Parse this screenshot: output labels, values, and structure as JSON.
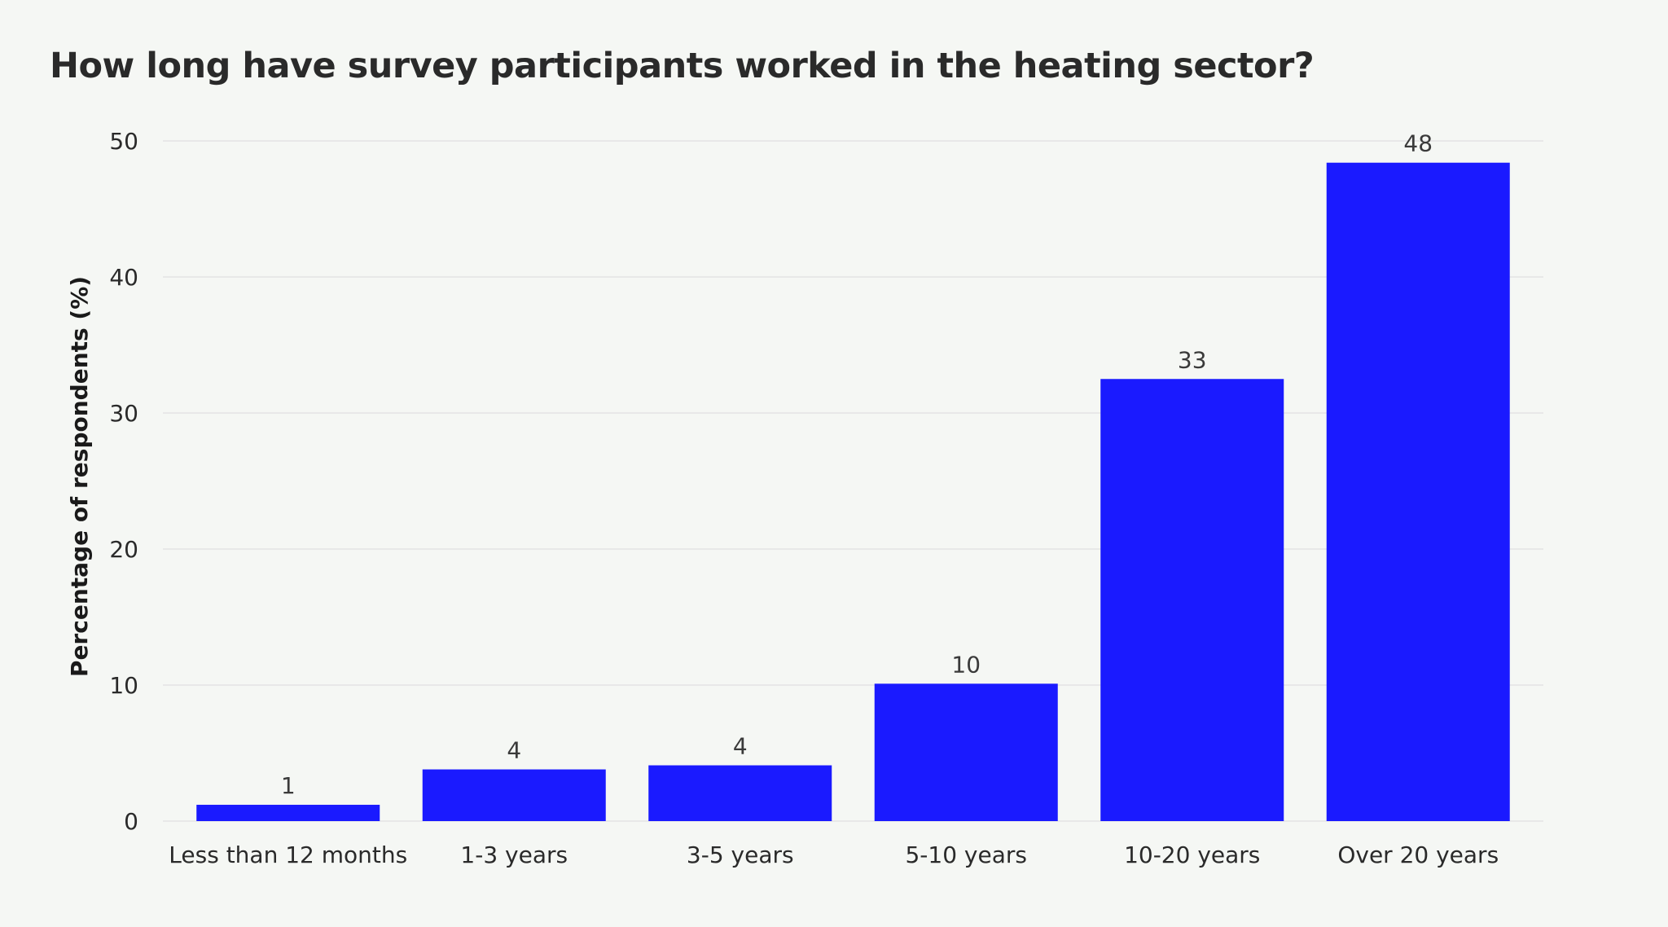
{
  "chart_data": {
    "type": "bar",
    "title": "How long have survey participants worked in the heating sector?",
    "xlabel": "",
    "ylabel": "Percentage of respondents (%)",
    "categories": [
      "Less than 12 months",
      "1-3 years",
      "3-5 years",
      "5-10 years",
      "10-20 years",
      "Over 20 years"
    ],
    "values": [
      1.2,
      3.8,
      4.1,
      10.1,
      32.5,
      48.4
    ],
    "data_labels": [
      "1",
      "4",
      "4",
      "10",
      "33",
      "48"
    ],
    "ylim": [
      0,
      50
    ],
    "yticks": [
      0,
      10,
      20,
      30,
      40,
      50
    ],
    "grid": true,
    "bar_color": "#1a1aff",
    "grid_color": "#e8e8e8"
  }
}
